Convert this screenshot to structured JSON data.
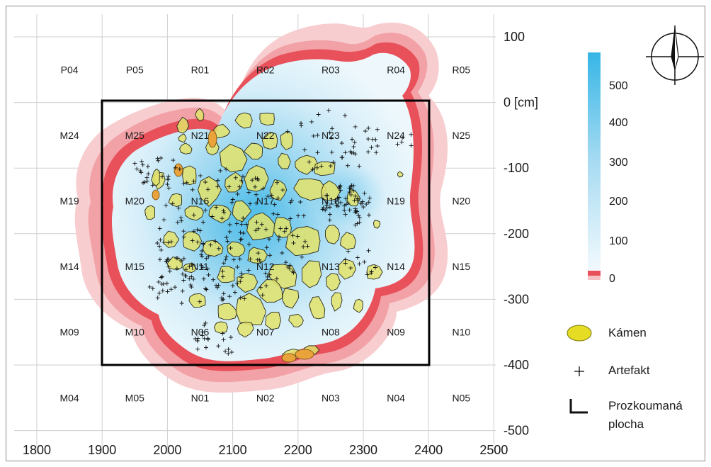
{
  "map": {
    "x_axis": {
      "ticks": [
        "1800",
        "1900",
        "2000",
        "2100",
        "2200",
        "2300",
        "2400",
        "2500"
      ]
    },
    "y_axis": {
      "ticks": [
        "100",
        "0 [cm]",
        "-100",
        "-200",
        "-300",
        "-400",
        "-500"
      ]
    },
    "grid_rows": [
      [
        "P04",
        "P05",
        "R01",
        "R02",
        "R03",
        "R04",
        "R05"
      ],
      [
        "M24",
        "M25",
        "N21",
        "N22",
        "N23",
        "N24",
        "N25"
      ],
      [
        "M19",
        "M20",
        "N16",
        "N17",
        "N18",
        "N19",
        "N20"
      ],
      [
        "M14",
        "M15",
        "N11",
        "N12",
        "N13",
        "N14",
        "N15"
      ],
      [
        "M09",
        "M10",
        "N06",
        "N07",
        "N08",
        "N09",
        "N10"
      ],
      [
        "M04",
        "M05",
        "N01",
        "N02",
        "N03",
        "N04",
        "N05"
      ]
    ],
    "colors": {
      "stone_fill": "#e3e36a",
      "stone_stroke": "#2a2a1a",
      "density_high": "#34b4e4",
      "density_low": "#e9f5fb",
      "halo_outer": "#f7c5c8",
      "halo_mid": "#f0959b",
      "halo_edge": "#e6444f",
      "excavation_border": "#000000"
    }
  },
  "color_scale": {
    "ticks": [
      "500",
      "400",
      "300",
      "200",
      "100",
      "0"
    ]
  },
  "legend": {
    "stone": "Kámen",
    "artefact": "Artefakt",
    "area_line1": "Prozkoumaná",
    "area_line2": "plocha"
  },
  "north_arrow": {
    "icon": "north-arrow-icon"
  }
}
